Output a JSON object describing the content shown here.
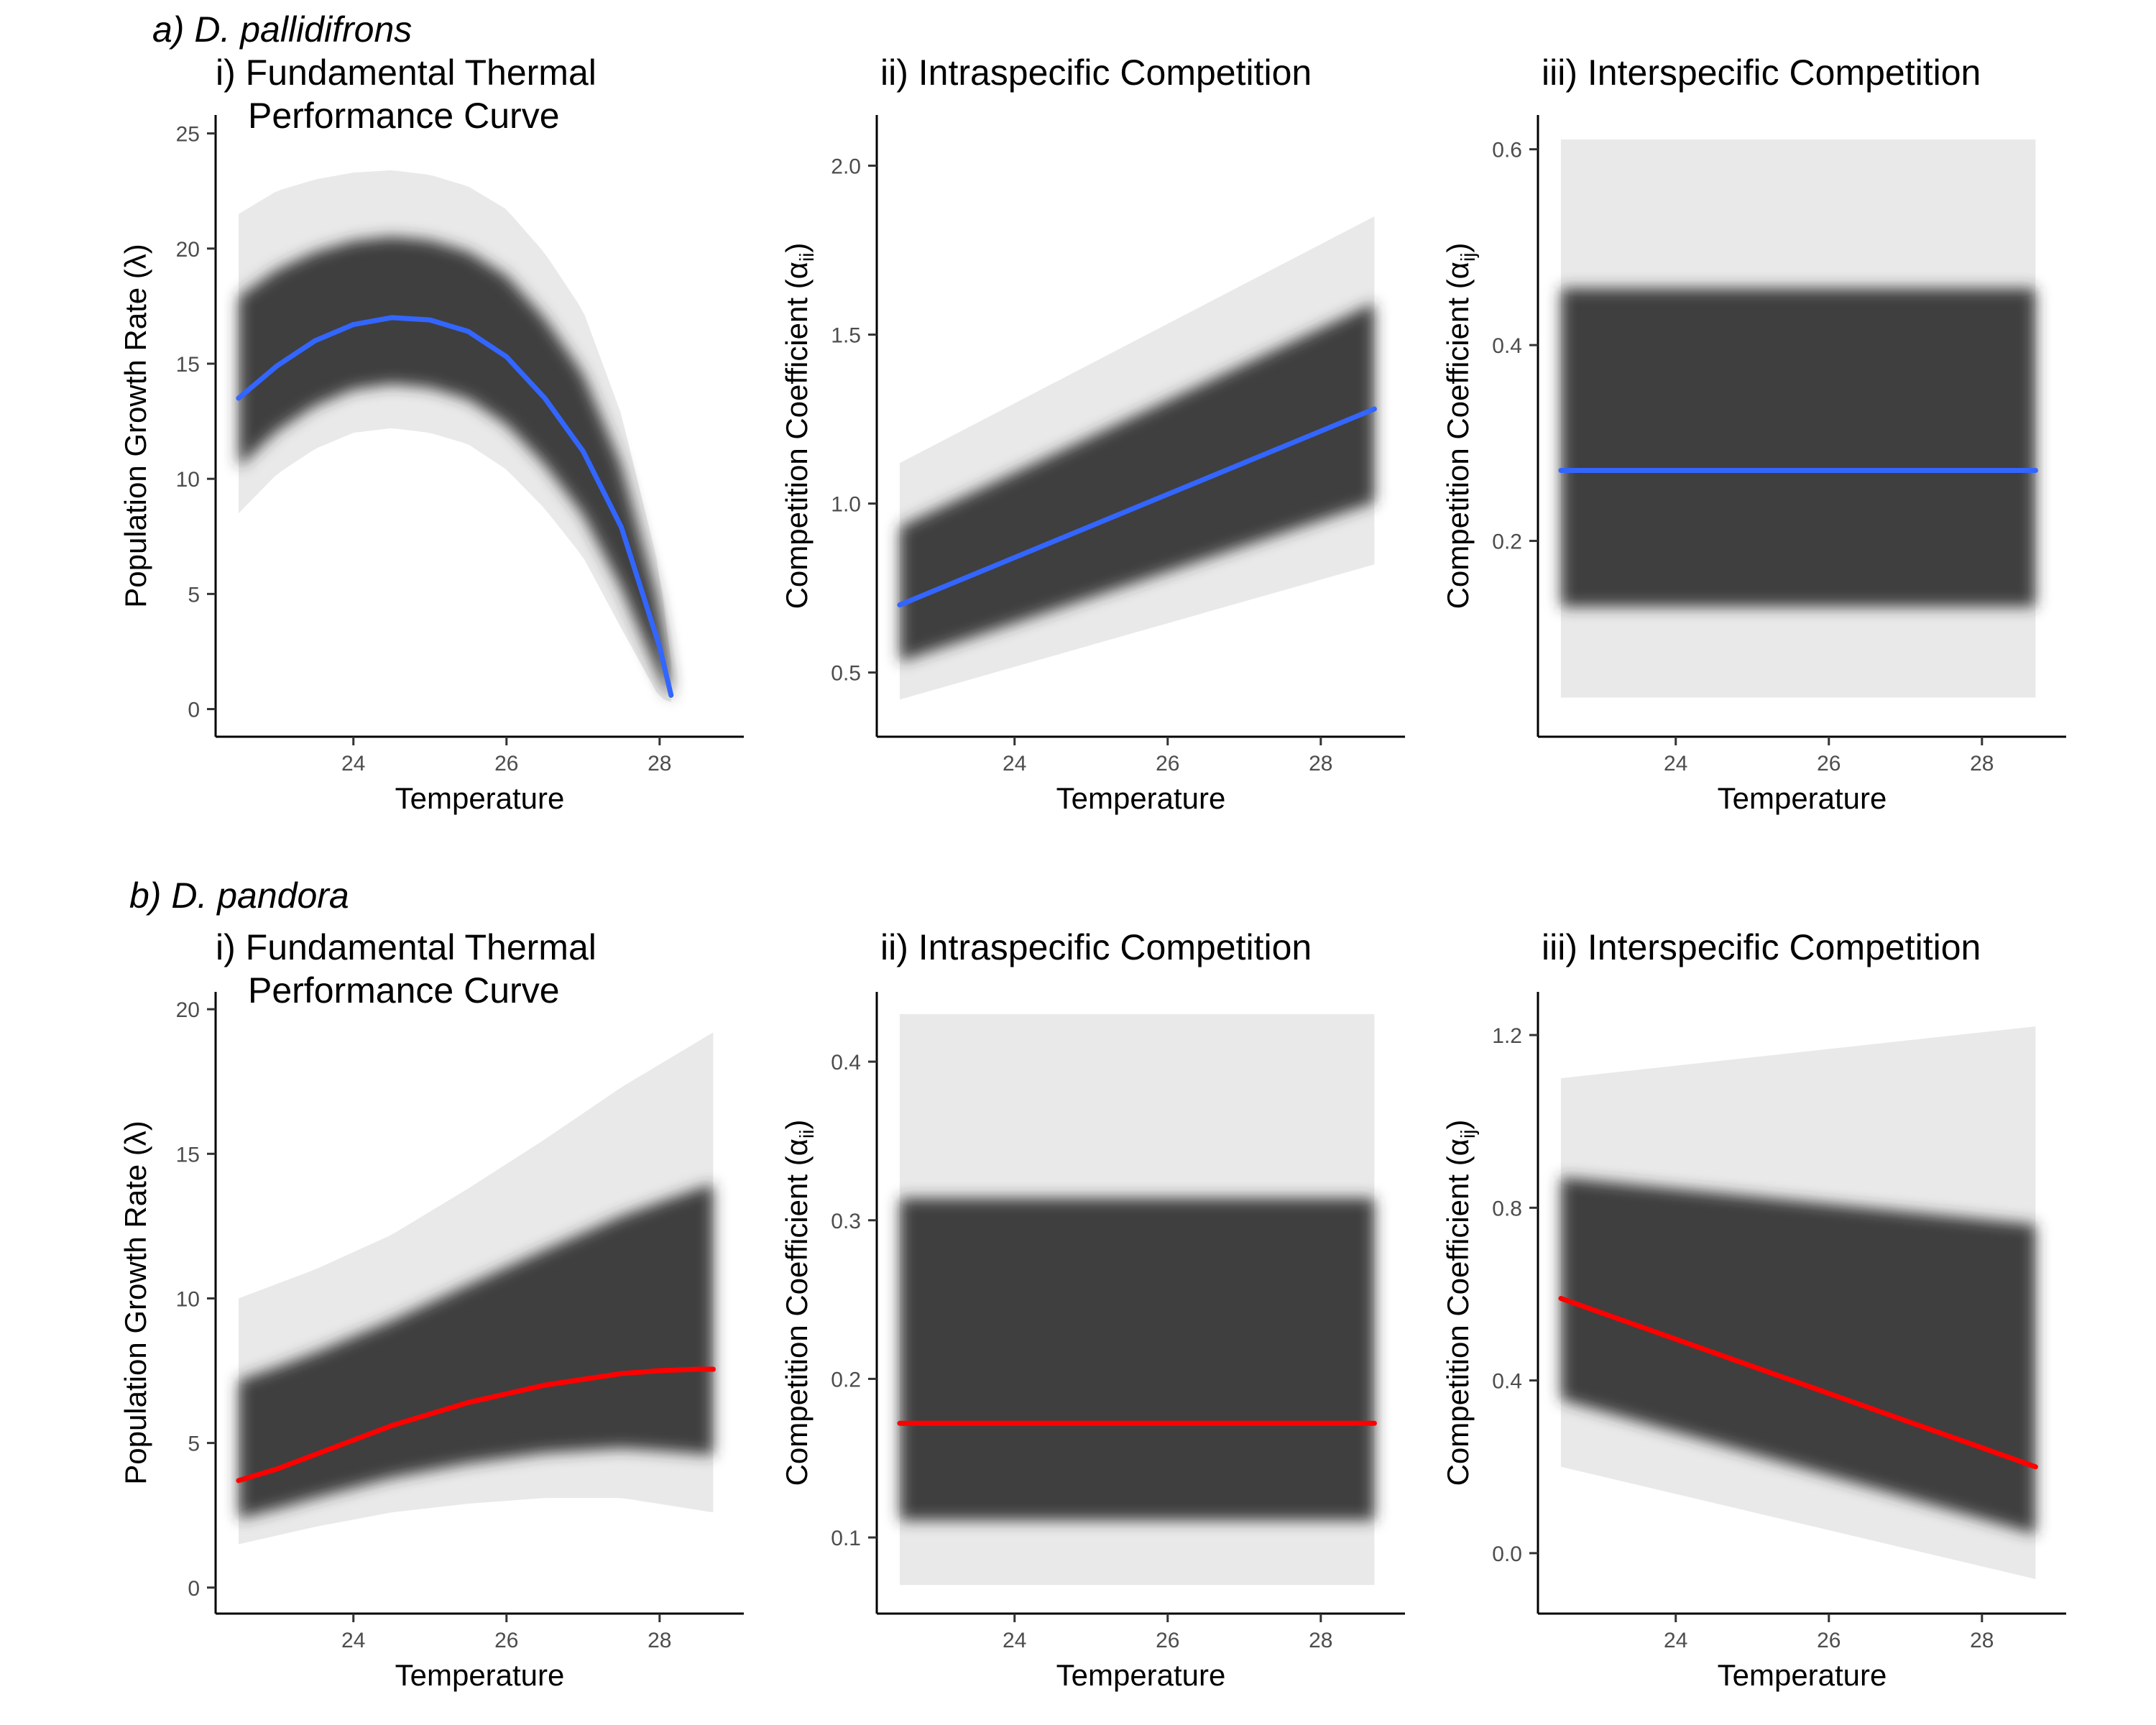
{
  "figure": {
    "rows": [
      {
        "title": "a) D. pallidifrons",
        "fit_color": "#3366FF",
        "panels": [
          {
            "title_lines": [
              "i) Fundamental Thermal",
              "Performance Curve"
            ],
            "xlabel": "Temperature",
            "ylabel": "Population Growth Rate (λ)",
            "ylabel_sub": "",
            "xlim": [
              22.2,
              29.1
            ],
            "ylim": [
              -1.2,
              25.8
            ],
            "xticks": [
              24,
              26,
              28
            ],
            "yticks": [
              0,
              5,
              10,
              15,
              20,
              25
            ],
            "chart_data": {
              "type": "line",
              "series": [
                {
                  "x": [
                    22.5,
                    23.0,
                    23.5,
                    24.0,
                    24.5,
                    25.0,
                    25.5,
                    26.0,
                    26.5,
                    27.0,
                    27.5,
                    28.0,
                    28.15
                  ],
                  "y": [
                    13.5,
                    14.9,
                    16.0,
                    16.7,
                    17.0,
                    16.9,
                    16.4,
                    15.3,
                    13.5,
                    11.2,
                    7.9,
                    2.7,
                    0.6
                  ]
                }
              ],
              "uncertainty_band": {
                "x": [
                  22.5,
                  23.0,
                  23.5,
                  24.0,
                  24.5,
                  25.0,
                  25.5,
                  26.0,
                  26.5,
                  27.0,
                  27.5,
                  28.0,
                  28.15
                ],
                "lower": [
                  8.5,
                  10.2,
                  11.3,
                  12.0,
                  12.2,
                  12.0,
                  11.5,
                  10.4,
                  8.7,
                  6.6,
                  3.5,
                  0.5,
                  0.3
                ],
                "upper": [
                  21.5,
                  22.5,
                  23.0,
                  23.3,
                  23.4,
                  23.2,
                  22.7,
                  21.7,
                  19.8,
                  17.3,
                  12.8,
                  6.0,
                  2.0
                ]
              },
              "xlabel": "Temperature",
              "ylabel": "Population Growth Rate (λ)",
              "xlim": [
                22.2,
                29.1
              ],
              "ylim": [
                -1.2,
                25.8
              ],
              "grid": false
            }
          },
          {
            "title_lines": [
              "ii) Intraspecific Competition"
            ],
            "xlabel": "Temperature",
            "ylabel": "Competition Coefficient (α",
            "ylabel_sub": "ii",
            "xlim": [
              22.2,
              29.1
            ],
            "ylim": [
              0.31,
              2.15
            ],
            "xticks": [
              24,
              26,
              28
            ],
            "yticks": [
              0.5,
              1.0,
              1.5,
              2.0
            ],
            "ytick_labels": [
              "0.5",
              "1.0",
              "1.5",
              "2.0"
            ],
            "chart_data": {
              "type": "line",
              "series": [
                {
                  "x": [
                    22.5,
                    28.7
                  ],
                  "y": [
                    0.7,
                    1.28
                  ]
                }
              ],
              "uncertainty_band": {
                "x": [
                  22.5,
                  28.7
                ],
                "lower": [
                  0.42,
                  0.82
                ],
                "upper": [
                  1.12,
                  1.85
                ]
              },
              "xlabel": "Temperature",
              "ylabel": "Competition Coefficient (αii)",
              "xlim": [
                22.2,
                29.1
              ],
              "ylim": [
                0.31,
                2.15
              ],
              "grid": false
            }
          },
          {
            "title_lines": [
              "iii) Interspecific Competition"
            ],
            "xlabel": "Temperature",
            "ylabel": "Competition Coefficient (α",
            "ylabel_sub": "ij",
            "xlim": [
              22.2,
              29.1
            ],
            "ylim": [
              0.0,
              0.635
            ],
            "xticks": [
              24,
              26,
              28
            ],
            "yticks": [
              0.2,
              0.4,
              0.6
            ],
            "ytick_labels": [
              "0.2",
              "0.4",
              "0.6"
            ],
            "chart_data": {
              "type": "line",
              "series": [
                {
                  "x": [
                    22.5,
                    28.7
                  ],
                  "y": [
                    0.272,
                    0.272
                  ]
                }
              ],
              "uncertainty_band": {
                "x": [
                  22.5,
                  28.7
                ],
                "lower": [
                  0.04,
                  0.04
                ],
                "upper": [
                  0.61,
                  0.61
                ]
              },
              "xlabel": "Temperature",
              "ylabel": "Competition Coefficient (αij)",
              "xlim": [
                22.2,
                29.1
              ],
              "ylim": [
                0.0,
                0.635
              ],
              "grid": false
            }
          }
        ]
      },
      {
        "title": "b) D. pandora",
        "fit_color": "#FF0000",
        "panels": [
          {
            "title_lines": [
              "i) Fundamental Thermal",
              "Performance Curve"
            ],
            "xlabel": "Temperature",
            "ylabel": "Population Growth Rate (λ)",
            "ylabel_sub": "",
            "xlim": [
              22.2,
              29.1
            ],
            "ylim": [
              -0.9,
              20.6
            ],
            "xticks": [
              24,
              26,
              28
            ],
            "yticks": [
              0,
              5,
              10,
              15,
              20
            ],
            "chart_data": {
              "type": "line",
              "series": [
                {
                  "x": [
                    22.5,
                    23.0,
                    23.5,
                    24.0,
                    24.5,
                    25.0,
                    25.5,
                    26.0,
                    26.5,
                    27.0,
                    27.5,
                    28.0,
                    28.5,
                    28.7
                  ],
                  "y": [
                    3.7,
                    4.1,
                    4.6,
                    5.1,
                    5.6,
                    6.0,
                    6.4,
                    6.7,
                    7.0,
                    7.2,
                    7.4,
                    7.5,
                    7.55,
                    7.55
                  ]
                }
              ],
              "uncertainty_band": {
                "x": [
                  22.5,
                  23.5,
                  24.5,
                  25.5,
                  26.5,
                  27.5,
                  28.7
                ],
                "lower": [
                  1.5,
                  2.1,
                  2.6,
                  2.9,
                  3.1,
                  3.1,
                  2.6
                ],
                "upper": [
                  10.0,
                  11.0,
                  12.2,
                  13.8,
                  15.5,
                  17.3,
                  19.2
                ]
              },
              "xlabel": "Temperature",
              "ylabel": "Population Growth Rate (λ)",
              "xlim": [
                22.2,
                29.1
              ],
              "ylim": [
                -0.9,
                20.6
              ],
              "grid": false
            }
          },
          {
            "title_lines": [
              "ii) Intraspecific Competition"
            ],
            "xlabel": "Temperature",
            "ylabel": "Competition Coefficient (α",
            "ylabel_sub": "ii",
            "xlim": [
              22.2,
              29.1
            ],
            "ylim": [
              0.052,
              0.444
            ],
            "xticks": [
              24,
              26,
              28
            ],
            "yticks": [
              0.1,
              0.2,
              0.3,
              0.4
            ],
            "ytick_labels": [
              "0.1",
              "0.2",
              "0.3",
              "0.4"
            ],
            "chart_data": {
              "type": "line",
              "series": [
                {
                  "x": [
                    22.5,
                    28.7
                  ],
                  "y": [
                    0.172,
                    0.172
                  ]
                }
              ],
              "uncertainty_band": {
                "x": [
                  22.5,
                  28.7
                ],
                "lower": [
                  0.07,
                  0.07
                ],
                "upper": [
                  0.43,
                  0.43
                ]
              },
              "xlabel": "Temperature",
              "ylabel": "Competition Coefficient (αii)",
              "xlim": [
                22.2,
                29.1
              ],
              "ylim": [
                0.052,
                0.444
              ],
              "grid": false
            }
          },
          {
            "title_lines": [
              "iii) Interspecific Competition"
            ],
            "xlabel": "Temperature",
            "ylabel": "Competition Coefficient (α",
            "ylabel_sub": "ij",
            "xlim": [
              22.2,
              29.1
            ],
            "ylim": [
              -0.14,
              1.3
            ],
            "xticks": [
              24,
              26,
              28
            ],
            "yticks": [
              0.0,
              0.4,
              0.8,
              1.2
            ],
            "ytick_labels": [
              "0.0",
              "0.4",
              "0.8",
              "1.2"
            ],
            "chart_data": {
              "type": "line",
              "series": [
                {
                  "x": [
                    22.5,
                    28.7
                  ],
                  "y": [
                    0.59,
                    0.2
                  ]
                }
              ],
              "uncertainty_band": {
                "x": [
                  22.5,
                  28.7
                ],
                "lower": [
                  0.2,
                  -0.06
                ],
                "upper": [
                  1.1,
                  1.22
                ]
              },
              "xlabel": "Temperature",
              "ylabel": "Competition Coefficient (αij)",
              "xlim": [
                22.2,
                29.1
              ],
              "ylim": [
                -0.14,
                1.3
              ],
              "grid": false
            }
          }
        ]
      }
    ]
  }
}
